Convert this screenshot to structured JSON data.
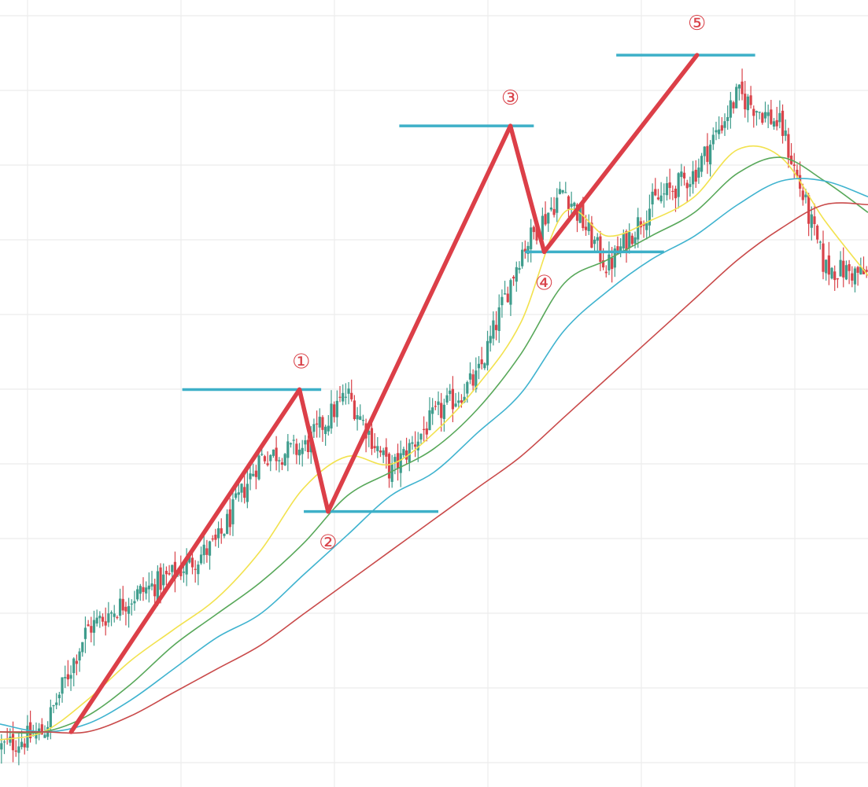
{
  "chart_data": {
    "type": "line",
    "title": "",
    "xlabel": "",
    "ylabel": "",
    "grid": true,
    "legend": "none",
    "x": [
      0,
      5,
      10,
      15,
      20,
      25,
      30,
      35,
      40,
      45,
      50,
      55,
      60,
      65,
      70,
      75,
      80,
      85,
      90,
      95,
      100
    ],
    "xlim": [
      0,
      100
    ],
    "ylim": [
      0,
      100
    ],
    "price_series": [
      {
        "name": "",
        "color": "#d9434a",
        "values": [
          5,
          7,
          20,
          24,
          27,
          31,
          42,
          43,
          50,
          40,
          47,
          52,
          68,
          76,
          66,
          74,
          78,
          88,
          84,
          66,
          65
        ]
      }
    ],
    "moving_averages": [
      {
        "name": "",
        "color": "#f2e24e",
        "values": [
          6,
          7,
          11,
          16,
          20,
          24,
          30,
          38,
          42,
          41,
          45,
          51,
          59,
          73,
          70,
          72,
          75,
          81,
          80,
          72,
          65
        ]
      },
      {
        "name": "",
        "color": "#58a85a",
        "values": [
          7,
          7,
          9,
          13,
          18,
          22,
          26,
          31,
          37,
          40,
          43,
          48,
          55,
          64,
          67,
          70,
          73,
          78,
          80,
          77,
          73
        ]
      },
      {
        "name": "",
        "color": "#3fb3cf",
        "values": [
          8,
          7,
          8,
          11,
          15,
          19,
          22,
          27,
          32,
          37,
          40,
          45,
          50,
          58,
          63,
          67,
          70,
          74,
          77,
          77,
          75
        ]
      },
      {
        "name": "",
        "color": "#c94a4a",
        "values": [
          7,
          7,
          7,
          9,
          12,
          15,
          18,
          22,
          26,
          30,
          34,
          38,
          42,
          47,
          52,
          57,
          62,
          67,
          71,
          74,
          74
        ]
      }
    ],
    "wave_lines": {
      "color": "#dc3f48",
      "points": [
        {
          "x": 8.2,
          "y": 7
        },
        {
          "x": 34.5,
          "y": 50.5
        },
        {
          "x": 37.8,
          "y": 35
        },
        {
          "x": 58.8,
          "y": 84
        },
        {
          "x": 62.7,
          "y": 68
        },
        {
          "x": 80.3,
          "y": 93
        }
      ]
    },
    "levels": {
      "color": "#3eb0c8",
      "lines": [
        {
          "y": 50.5,
          "x_start": 21,
          "x_end": 37
        },
        {
          "y": 35,
          "x_start": 35,
          "x_end": 50.5
        },
        {
          "y": 84,
          "x_start": 46,
          "x_end": 61.5
        },
        {
          "y": 68,
          "x_start": 60.5,
          "x_end": 76.5
        },
        {
          "y": 93,
          "x_start": 71,
          "x_end": 87
        }
      ]
    },
    "annotations": [
      {
        "text": "①",
        "x": 34.7,
        "y": 54
      },
      {
        "text": "②",
        "x": 37.8,
        "y": 31
      },
      {
        "text": "③",
        "x": 58.8,
        "y": 87.5
      },
      {
        "text": "④",
        "x": 62.7,
        "y": 64
      },
      {
        "text": "⑤",
        "x": 80.3,
        "y": 97
      }
    ]
  }
}
